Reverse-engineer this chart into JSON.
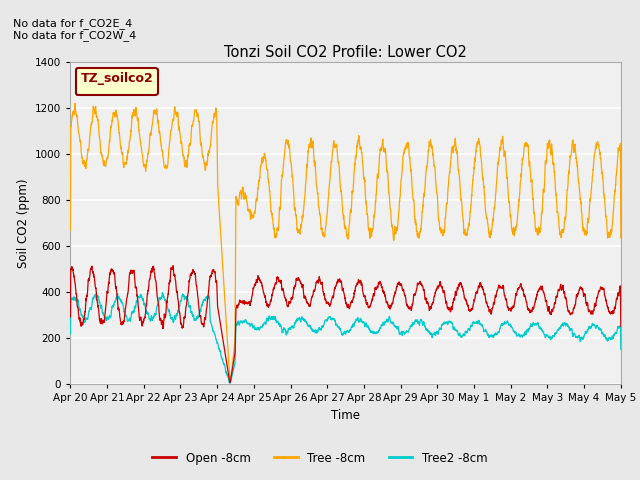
{
  "title": "Tonzi Soil CO2 Profile: Lower CO2",
  "xlabel": "Time",
  "ylabel": "Soil CO2 (ppm)",
  "annotations": [
    "No data for f_CO2E_4",
    "No data for f_CO2W_4"
  ],
  "legend_box_label": "TZ_soilco2",
  "ylim": [
    0,
    1400
  ],
  "yticks": [
    0,
    200,
    400,
    600,
    800,
    1000,
    1200,
    1400
  ],
  "line_colors": {
    "open": "#CC0000",
    "tree": "#FFA500",
    "tree2": "#00CCCC"
  },
  "line_labels": [
    "Open -8cm",
    "Tree -8cm",
    "Tree2 -8cm"
  ],
  "bg_color": "#E8E8E8",
  "plot_bg": "#F0F0F0",
  "tick_dates": [
    "Apr 20",
    "Apr 21",
    "Apr 22",
    "Apr 23",
    "Apr 24",
    "Apr 25",
    "Apr 26",
    "Apr 27",
    "Apr 28",
    "Apr 29",
    "Apr 30",
    "May 1",
    "May 2",
    "May 3",
    "May 4",
    "May 5"
  ]
}
